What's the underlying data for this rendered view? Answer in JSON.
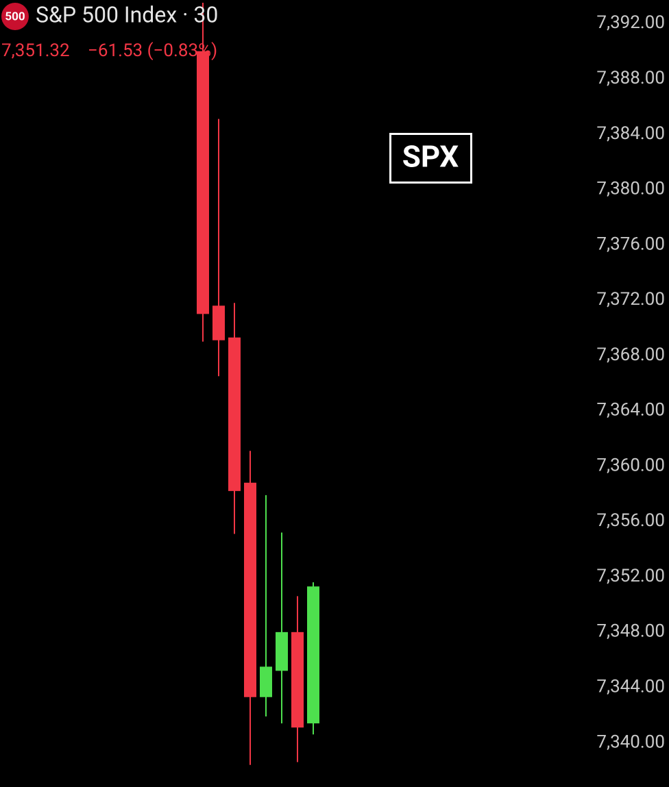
{
  "chart_data": {
    "type": "candlestick",
    "badge": "500",
    "title": "S&P 500 Index · 30",
    "price": "7,351.32",
    "change": "−61.53 (−0.83%)",
    "annotation": "SPX",
    "up_color": "#4ee04e",
    "down_color": "#f23645",
    "ylim": [
      7336.8,
      7393.7
    ],
    "yticks": [
      {
        "value": 7392,
        "label": "7,392.00"
      },
      {
        "value": 7388,
        "label": "7,388.00"
      },
      {
        "value": 7384,
        "label": "7,384.00"
      },
      {
        "value": 7380,
        "label": "7,380.00"
      },
      {
        "value": 7376,
        "label": "7,376.00"
      },
      {
        "value": 7372,
        "label": "7,372.00"
      },
      {
        "value": 7368,
        "label": "7,368.00"
      },
      {
        "value": 7364,
        "label": "7,364.00"
      },
      {
        "value": 7360,
        "label": "7,360.00"
      },
      {
        "value": 7356,
        "label": "7,356.00"
      },
      {
        "value": 7352,
        "label": "7,352.00"
      },
      {
        "value": 7348,
        "label": "7,348.00"
      },
      {
        "value": 7344,
        "label": "7,344.00"
      },
      {
        "value": 7340,
        "label": "7,340.00"
      }
    ],
    "open": [
      7390.0,
      7371.6,
      7369.3,
      7358.8,
      7343.3,
      7345.2,
      7348.0,
      7341.4
    ],
    "high": [
      7393.5,
      7385.1,
      7371.8,
      7361.1,
      7357.9,
      7355.2,
      7350.6,
      7351.6
    ],
    "low": [
      7369.0,
      7366.5,
      7355.1,
      7338.4,
      7341.9,
      7341.4,
      7338.6,
      7340.6
    ],
    "close": [
      7371.0,
      7369.1,
      7358.2,
      7343.3,
      7345.5,
      7348.0,
      7341.1,
      7351.3
    ]
  }
}
